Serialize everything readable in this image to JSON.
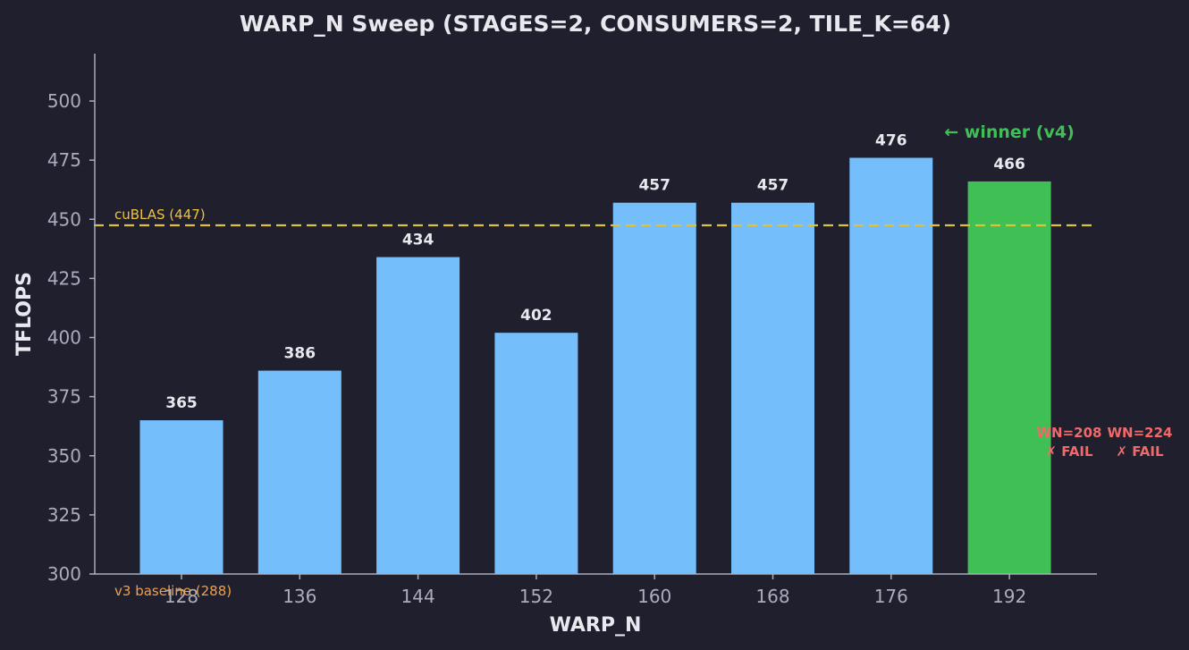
{
  "chart_data": {
    "type": "bar",
    "title": "WARP_N Sweep (STAGES=2, CONSUMERS=2, TILE_K=64)",
    "xlabel": "WARP_N",
    "ylabel": "TFLOPS",
    "ylim": [
      300,
      520
    ],
    "yticks": [
      300,
      325,
      350,
      375,
      400,
      425,
      450,
      475,
      500
    ],
    "categories": [
      "128",
      "136",
      "144",
      "152",
      "160",
      "168",
      "176",
      "192"
    ],
    "values": [
      365,
      386,
      434,
      402,
      457,
      457,
      476,
      466
    ],
    "value_labels": [
      "365",
      "386",
      "434",
      "402",
      "457",
      "457",
      "476",
      "466"
    ],
    "bar_colors": [
      "#74bffb",
      "#74bffb",
      "#74bffb",
      "#74bffb",
      "#74bffb",
      "#74bffb",
      "#74bffb",
      "#40bf55"
    ],
    "grid": false,
    "reference_lines": [
      {
        "label": "cuBLAS (447)",
        "value": 447,
        "style": "dashed",
        "color": "#e0bf3a"
      }
    ],
    "annotations": [
      {
        "text": "v3 baseline (288)",
        "color": "#f0a04a"
      },
      {
        "text": "← winner (v4)",
        "color": "#3fbf55"
      },
      {
        "text": "WN=208\n✗ FAIL",
        "color": "#f06a6a"
      },
      {
        "text": "WN=224\n✗ FAIL",
        "color": "#f06a6a"
      }
    ]
  },
  "labels": {
    "title": "WARP_N Sweep (STAGES=2, CONSUMERS=2, TILE_K=64)",
    "xlabel": "WARP_N",
    "ylabel": "TFLOPS",
    "cublas": "cuBLAS (447)",
    "baseline": "v3 baseline (288)",
    "winner": "← winner (v4)",
    "fail1_top": "WN=208",
    "fail1_bottom": "✗ FAIL",
    "fail2_top": "WN=224",
    "fail2_bottom": "✗ FAIL"
  },
  "colors": {
    "background": "#1f1f2e",
    "bar": "#74bffb",
    "winner": "#40bf55",
    "axis": "#a9adbc",
    "cublas_line": "#e0bf3a"
  }
}
